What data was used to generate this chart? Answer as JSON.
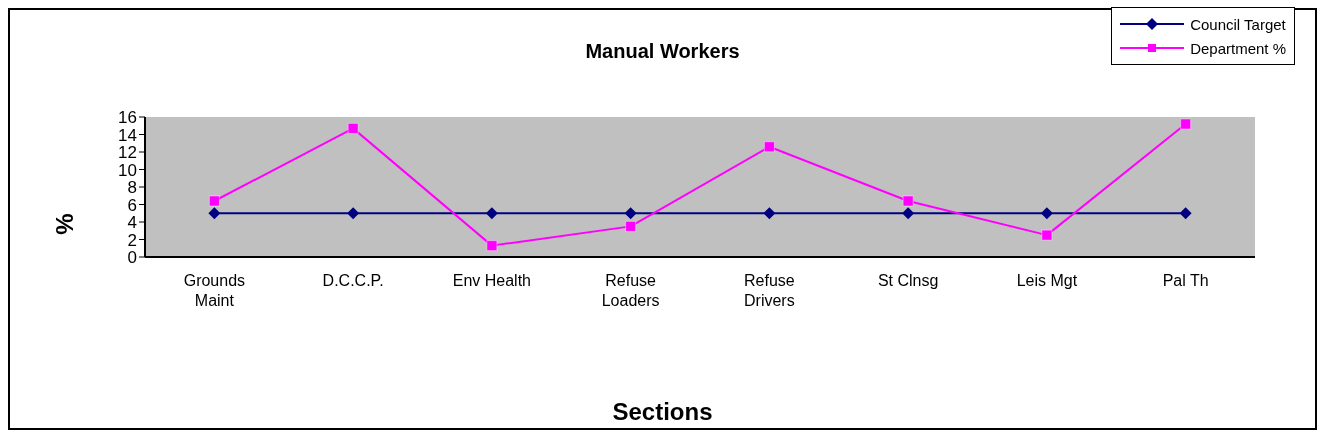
{
  "chart_data": {
    "type": "line",
    "title": "Manual Workers",
    "xlabel": "Sections",
    "ylabel": "%",
    "categories": [
      "Grounds Maint",
      "D.C.C.P.",
      "Env Health",
      "Refuse Loaders",
      "Refuse Drivers",
      "St Clnsg",
      "Leis Mgt",
      "Pal Th"
    ],
    "series": [
      {
        "name": "Council Target",
        "color": "#000080",
        "marker": "diamond",
        "values": [
          5,
          5,
          5,
          5,
          5,
          5,
          5,
          5
        ]
      },
      {
        "name": "Department %",
        "color": "#ff00ff",
        "marker": "square",
        "values": [
          6.4,
          14.7,
          1.3,
          3.5,
          12.6,
          6.4,
          2.5,
          15.2
        ]
      }
    ],
    "ylim": [
      0,
      16
    ],
    "yticks": [
      0,
      2,
      4,
      6,
      8,
      10,
      12,
      14,
      16
    ],
    "grid": false,
    "legend": "top right"
  }
}
